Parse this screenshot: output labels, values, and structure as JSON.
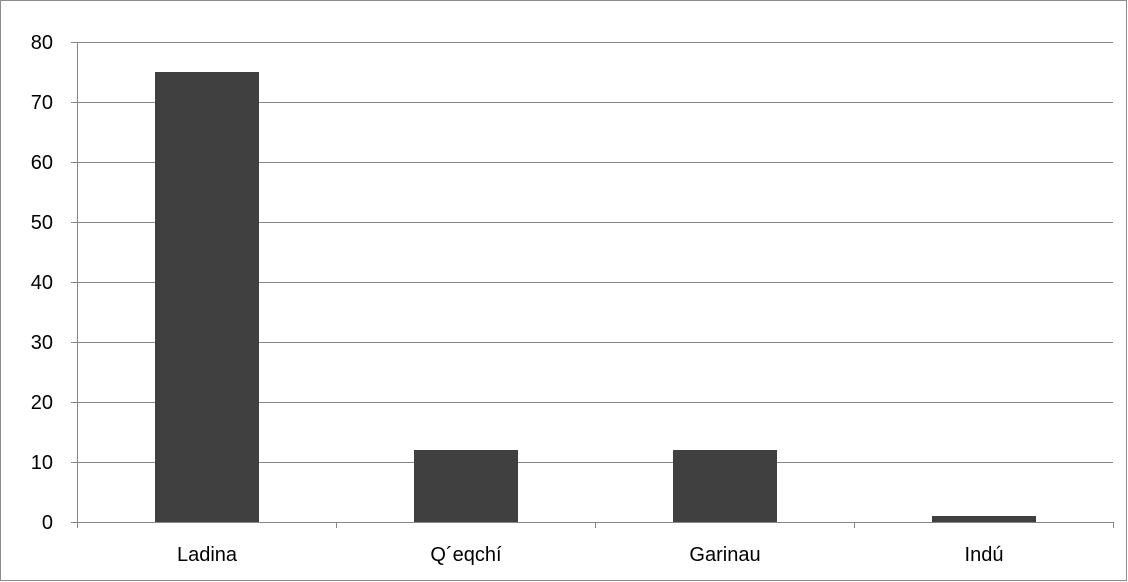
{
  "chart_data": {
    "type": "bar",
    "categories": [
      "Ladina",
      "Q´eqchí",
      "Garinau",
      "Indú"
    ],
    "values": [
      75,
      12,
      12,
      1
    ],
    "title": "",
    "xlabel": "",
    "ylabel": "",
    "ylim": [
      0,
      80
    ],
    "yticks": [
      0,
      10,
      20,
      30,
      40,
      50,
      60,
      70,
      80
    ],
    "grid": "horizontal",
    "legend": "none",
    "colors": {
      "bar": "#404040",
      "gridline": "#868686",
      "axis": "#868686",
      "text": "#000000"
    }
  }
}
